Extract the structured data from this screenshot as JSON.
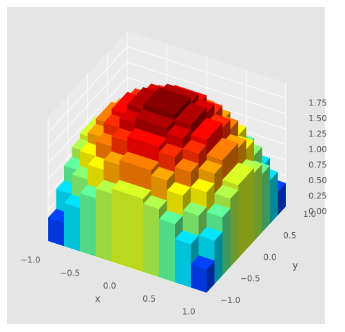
{
  "chart_data": {
    "type": "bar3d",
    "x": [
      -0.9,
      -0.7,
      -0.5,
      -0.3,
      -0.1,
      0.1,
      0.3,
      0.5,
      0.7,
      0.9
    ],
    "y": [
      -0.9,
      -0.7,
      -0.5,
      -0.3,
      -0.1,
      0.1,
      0.3,
      0.5,
      0.7,
      0.9
    ],
    "z": [
      [
        0.38,
        0.7,
        0.94,
        1.1,
        1.18,
        1.18,
        1.1,
        0.94,
        0.7,
        0.38
      ],
      [
        0.7,
        1.02,
        1.26,
        1.42,
        1.5,
        1.5,
        1.42,
        1.26,
        1.02,
        0.7
      ],
      [
        0.94,
        1.26,
        1.5,
        1.66,
        1.74,
        1.74,
        1.66,
        1.5,
        1.26,
        0.94
      ],
      [
        1.1,
        1.42,
        1.66,
        1.82,
        1.9,
        1.9,
        1.82,
        1.66,
        1.42,
        1.1
      ],
      [
        1.18,
        1.5,
        1.74,
        1.9,
        1.98,
        1.98,
        1.9,
        1.74,
        1.5,
        1.18
      ],
      [
        1.18,
        1.5,
        1.74,
        1.9,
        1.98,
        1.98,
        1.9,
        1.74,
        1.5,
        1.18
      ],
      [
        1.1,
        1.42,
        1.66,
        1.82,
        1.9,
        1.9,
        1.82,
        1.66,
        1.42,
        1.1
      ],
      [
        0.94,
        1.26,
        1.5,
        1.66,
        1.74,
        1.74,
        1.66,
        1.5,
        1.26,
        0.94
      ],
      [
        0.7,
        1.02,
        1.26,
        1.42,
        1.5,
        1.5,
        1.42,
        1.26,
        1.02,
        0.7
      ],
      [
        0.38,
        0.7,
        0.94,
        1.1,
        1.18,
        1.18,
        1.1,
        0.94,
        0.7,
        0.38
      ]
    ],
    "colormap": "jet",
    "xlabel": "x",
    "ylabel": "y",
    "xlim": [
      -1,
      1
    ],
    "ylim": [
      -1,
      1
    ],
    "zlim": [
      0,
      2
    ],
    "xticks": [
      {
        "value": -1,
        "label": "−1.0"
      },
      {
        "value": -0.5,
        "label": "−0.5"
      },
      {
        "value": 0,
        "label": "0.0"
      },
      {
        "value": 0.5,
        "label": "0.5"
      },
      {
        "value": 1,
        "label": "1.0"
      }
    ],
    "yticks": [
      {
        "value": -1,
        "label": "−1.0"
      },
      {
        "value": -0.5,
        "label": "−0.5"
      },
      {
        "value": 0,
        "label": "0.0"
      },
      {
        "value": 0.5,
        "label": "0.5"
      },
      {
        "value": 1,
        "label": "1.0"
      }
    ],
    "zticks": [
      {
        "value": 0,
        "label": "0.00"
      },
      {
        "value": 0.25,
        "label": "0.25"
      },
      {
        "value": 0.5,
        "label": "0.50"
      },
      {
        "value": 0.75,
        "label": "0.75"
      },
      {
        "value": 1,
        "label": "1.00"
      },
      {
        "value": 1.25,
        "label": "1.25"
      },
      {
        "value": 1.5,
        "label": "1.50"
      },
      {
        "value": 1.75,
        "label": "1.75"
      }
    ],
    "grid": true
  }
}
